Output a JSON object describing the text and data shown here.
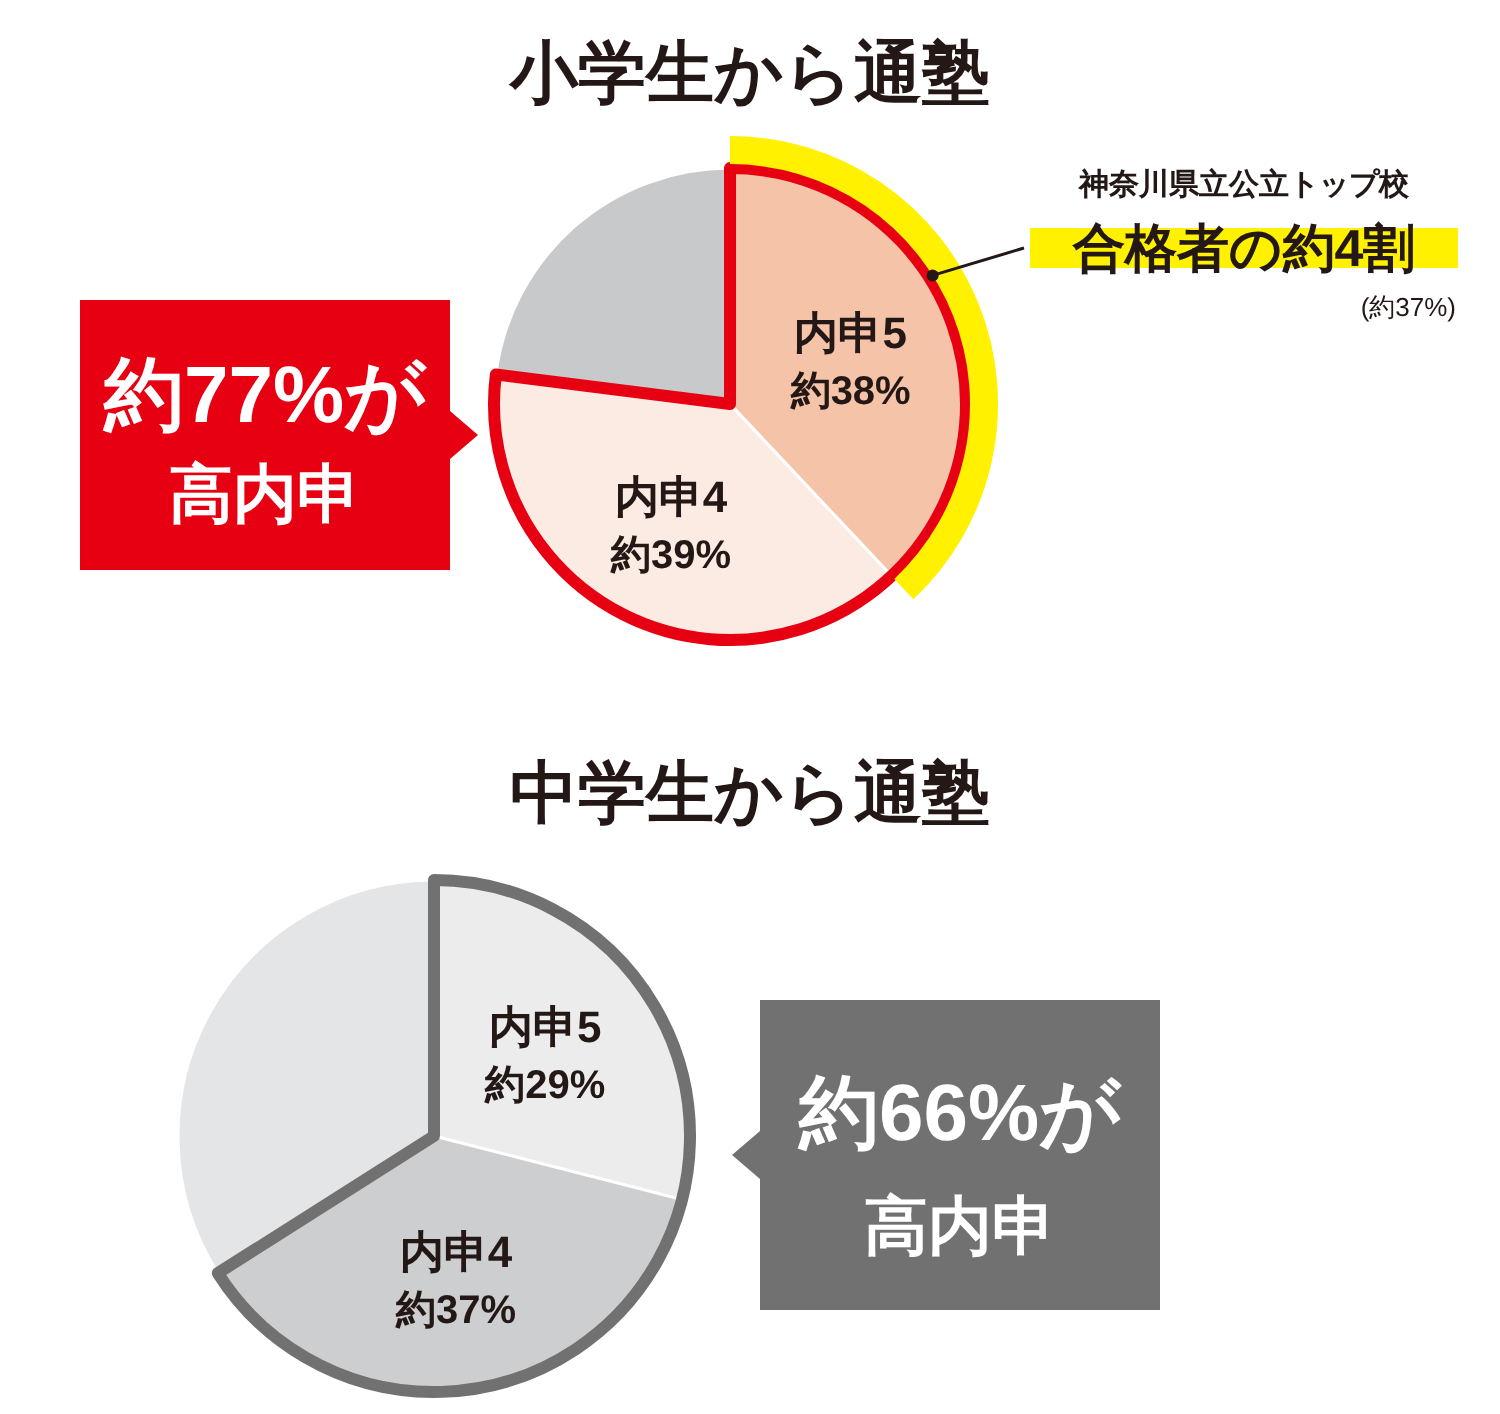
{
  "chart_data": [
    {
      "type": "pie",
      "title": "小学生から通塾",
      "categories": [
        "内申5",
        "内申4",
        null
      ],
      "values": [
        38,
        39,
        23
      ],
      "colors": [
        "#f5c4a8",
        "#fcebe2",
        "#c8c9cb"
      ],
      "value_labels": [
        "約38%",
        "約39%",
        null
      ],
      "annotations": [
        "約77%が",
        "高内申",
        "神奈川県立公立トップ校",
        "合格者の約4割",
        "(約37%)"
      ]
    },
    {
      "type": "pie",
      "title": "中学生から通塾",
      "categories": [
        "内申5",
        "内申4",
        null
      ],
      "values": [
        29,
        37,
        34
      ],
      "colors": [
        "#ececed",
        "#cdcecf",
        "#e4e5e6"
      ],
      "value_labels": [
        "約29%",
        "約37%",
        null
      ],
      "annotations": [
        "約66%が",
        "高内申"
      ]
    }
  ]
}
